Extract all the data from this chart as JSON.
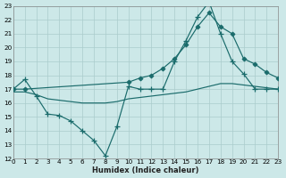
{
  "xlabel": "Humidex (Indice chaleur)",
  "background_color": "#cce8e8",
  "grid_color": "#aacccc",
  "line_color": "#1a6b6b",
  "xlim": [
    0,
    23
  ],
  "ylim": [
    12,
    23
  ],
  "xticks": [
    0,
    1,
    2,
    3,
    4,
    5,
    6,
    7,
    8,
    9,
    10,
    11,
    12,
    13,
    14,
    15,
    16,
    17,
    18,
    19,
    20,
    21,
    22,
    23
  ],
  "yticks": [
    12,
    13,
    14,
    15,
    16,
    17,
    18,
    19,
    20,
    21,
    22,
    23
  ],
  "line1_x": [
    0,
    1,
    2,
    3,
    4,
    5,
    6,
    7,
    8,
    9,
    10,
    11,
    12,
    13,
    14,
    15,
    16,
    17,
    18,
    19,
    20,
    21,
    22,
    23
  ],
  "line1_y": [
    17.0,
    17.7,
    16.5,
    15.2,
    15.1,
    14.7,
    14.0,
    13.3,
    12.2,
    14.3,
    17.2,
    17.0,
    17.0,
    17.0,
    19.0,
    20.5,
    22.2,
    23.3,
    21.0,
    19.0,
    18.1,
    17.0,
    17.0,
    17.0
  ],
  "line2_x": [
    0,
    1,
    10,
    11,
    12,
    13,
    14,
    15,
    16,
    17,
    18,
    19,
    20,
    21,
    22,
    23
  ],
  "line2_y": [
    17.0,
    17.0,
    17.5,
    17.8,
    18.0,
    18.5,
    19.2,
    20.2,
    21.5,
    22.5,
    21.5,
    21.0,
    19.2,
    18.8,
    18.2,
    17.8
  ],
  "line3_x": [
    0,
    1,
    2,
    3,
    4,
    5,
    6,
    7,
    8,
    9,
    10,
    11,
    12,
    13,
    14,
    15,
    16,
    17,
    18,
    19,
    20,
    21,
    22,
    23
  ],
  "line3_y": [
    16.8,
    16.8,
    16.6,
    16.3,
    16.2,
    16.1,
    16.0,
    16.0,
    16.0,
    16.1,
    16.3,
    16.4,
    16.5,
    16.6,
    16.7,
    16.8,
    17.0,
    17.2,
    17.4,
    17.4,
    17.3,
    17.2,
    17.1,
    17.0
  ]
}
